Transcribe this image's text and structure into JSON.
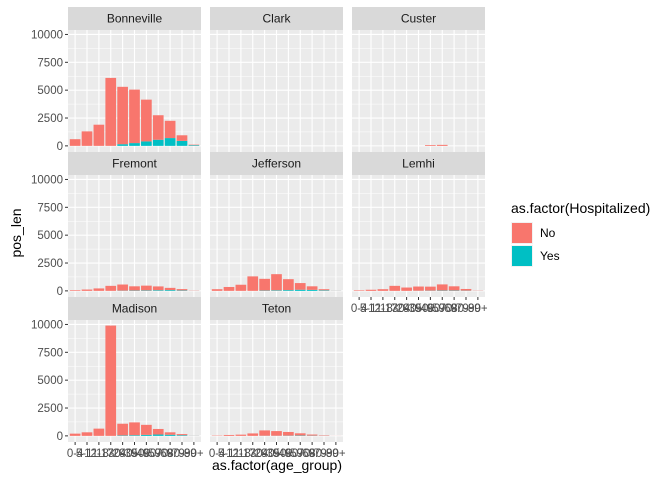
{
  "chart_data": {
    "type": "bar",
    "stacked": true,
    "faceted": true,
    "facet_columns": 3,
    "xlabel": "as.factor(age_group)",
    "ylabel": "pos_len",
    "ylim": [
      0,
      10000
    ],
    "yticks": [
      0,
      2500,
      5000,
      7500,
      10000
    ],
    "categories": [
      "0-4",
      "5-11",
      "12-17",
      "18-29",
      "30-39",
      "40-49",
      "50-59",
      "60-69",
      "70-79",
      "80-89",
      "90+"
    ],
    "legend": {
      "title": "as.factor(Hospitalized)",
      "position": "right",
      "entries": [
        {
          "label": "No",
          "color": "#F8766D"
        },
        {
          "label": "Yes",
          "color": "#00BFC4"
        }
      ]
    },
    "facets": [
      {
        "name": "Bonneville",
        "series": [
          {
            "name": "No",
            "values": [
              600,
              1300,
              1900,
              6100,
              5150,
              4800,
              3750,
              2200,
              1550,
              500,
              50
            ]
          },
          {
            "name": "Yes",
            "values": [
              0,
              0,
              0,
              0,
              150,
              250,
              400,
              550,
              700,
              450,
              60
            ]
          }
        ]
      },
      {
        "name": "Clark",
        "series": [
          {
            "name": "No",
            "values": [
              0,
              0,
              0,
              0,
              0,
              0,
              0,
              0,
              0,
              0,
              0
            ]
          },
          {
            "name": "Yes",
            "values": [
              0,
              0,
              0,
              0,
              0,
              0,
              0,
              0,
              0,
              0,
              0
            ]
          }
        ]
      },
      {
        "name": "Custer",
        "series": [
          {
            "name": "No",
            "values": [
              0,
              0,
              0,
              0,
              0,
              0,
              70,
              90,
              0,
              0,
              0
            ]
          },
          {
            "name": "Yes",
            "values": [
              0,
              0,
              0,
              0,
              0,
              0,
              0,
              0,
              0,
              0,
              0
            ]
          }
        ]
      },
      {
        "name": "Fremont",
        "series": [
          {
            "name": "No",
            "values": [
              60,
              120,
              220,
              450,
              550,
              380,
              430,
              340,
              200,
              120,
              20
            ]
          },
          {
            "name": "Yes",
            "values": [
              0,
              0,
              0,
              0,
              20,
              30,
              40,
              60,
              70,
              40,
              5
            ]
          }
        ]
      },
      {
        "name": "Jefferson",
        "series": [
          {
            "name": "No",
            "values": [
              150,
              350,
              550,
              1300,
              1050,
              1450,
              980,
              600,
              320,
              100,
              10
            ]
          },
          {
            "name": "Yes",
            "values": [
              0,
              0,
              0,
              0,
              30,
              50,
              70,
              100,
              90,
              50,
              10
            ]
          }
        ]
      },
      {
        "name": "Lemhi",
        "series": [
          {
            "name": "No",
            "values": [
              50,
              100,
              150,
              450,
              300,
              380,
              360,
              550,
              380,
              150,
              20
            ]
          },
          {
            "name": "Yes",
            "values": [
              0,
              0,
              0,
              0,
              0,
              10,
              20,
              30,
              30,
              20,
              5
            ]
          }
        ]
      },
      {
        "name": "Madison",
        "series": [
          {
            "name": "No",
            "values": [
              200,
              320,
              650,
              9900,
              1050,
              1150,
              900,
              500,
              220,
              100,
              10
            ]
          },
          {
            "name": "Yes",
            "values": [
              0,
              0,
              0,
              0,
              40,
              60,
              90,
              120,
              100,
              60,
              10
            ]
          }
        ]
      },
      {
        "name": "Teton",
        "series": [
          {
            "name": "No",
            "values": [
              30,
              80,
              110,
              220,
              480,
              420,
              330,
              200,
              100,
              40,
              5
            ]
          },
          {
            "name": "Yes",
            "values": [
              0,
              0,
              0,
              0,
              10,
              10,
              20,
              30,
              20,
              10,
              0
            ]
          }
        ]
      }
    ],
    "grid": true,
    "background": "#EBEBEB",
    "strip_background": "#D9D9D9"
  }
}
